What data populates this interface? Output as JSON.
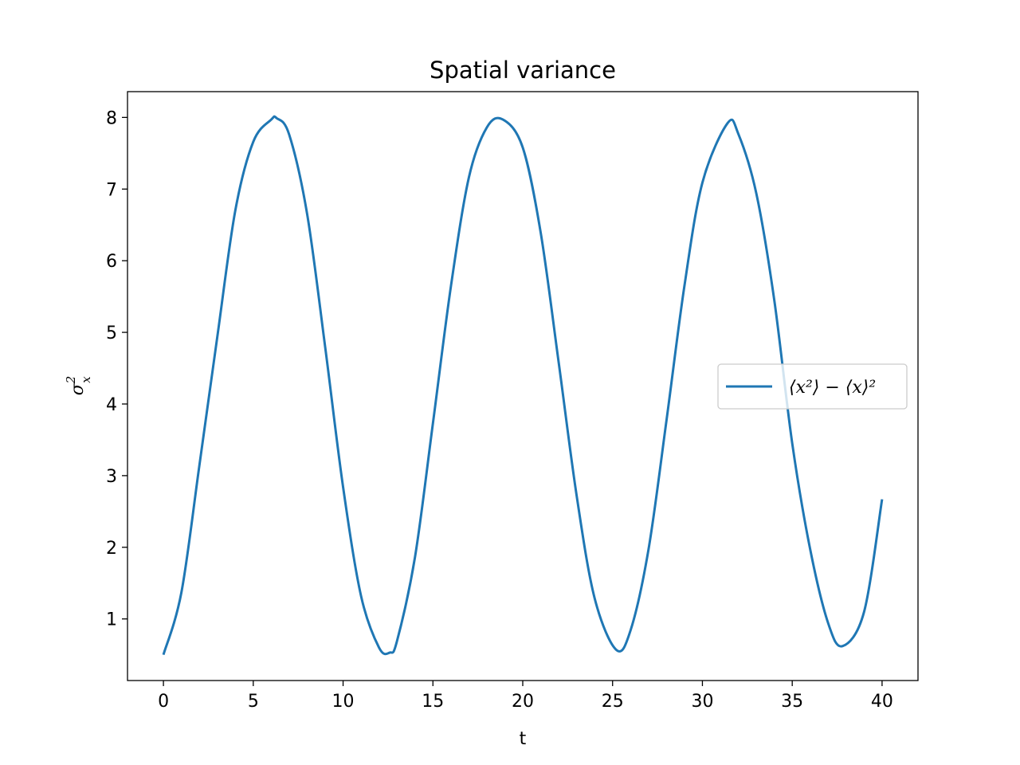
{
  "chart_data": {
    "type": "line",
    "title": "Spatial variance",
    "xlabel": "t",
    "ylabel": "σ",
    "ylabel_superscript": "2",
    "ylabel_subscript": "x",
    "xlim": [
      -2,
      42
    ],
    "ylim": [
      0.14,
      8.36
    ],
    "xticks": [
      0,
      5,
      10,
      15,
      20,
      25,
      30,
      35,
      40
    ],
    "yticks": [
      1,
      2,
      3,
      4,
      5,
      6,
      7,
      8
    ],
    "grid": false,
    "legend_position": "center-right",
    "series": [
      {
        "name": "⟨x²⟩ − ⟨x⟩²",
        "color": "#1f77b4",
        "x": [
          0,
          1,
          2,
          3,
          4,
          5,
          6,
          6.3,
          7,
          8,
          9,
          10,
          11,
          12,
          12.6,
          13,
          14,
          15,
          16,
          17,
          18,
          18.9,
          20,
          21,
          22,
          23,
          24,
          25.2,
          26,
          27,
          28,
          29,
          30,
          31.4,
          32,
          33,
          34,
          35,
          36,
          37,
          37.8,
          39,
          40
        ],
        "y": [
          0.5,
          1.37,
          3.14,
          4.94,
          6.7,
          7.66,
          7.97,
          7.99,
          7.76,
          6.65,
          4.8,
          2.84,
          1.32,
          0.6,
          0.53,
          0.69,
          1.86,
          3.73,
          5.64,
          7.16,
          7.86,
          7.97,
          7.58,
          6.39,
          4.58,
          2.72,
          1.29,
          0.57,
          0.84,
          1.97,
          3.77,
          5.65,
          7.09,
          7.92,
          7.77,
          6.94,
          5.45,
          3.45,
          1.97,
          0.94,
          0.62,
          1.1,
          2.67
        ]
      }
    ]
  }
}
